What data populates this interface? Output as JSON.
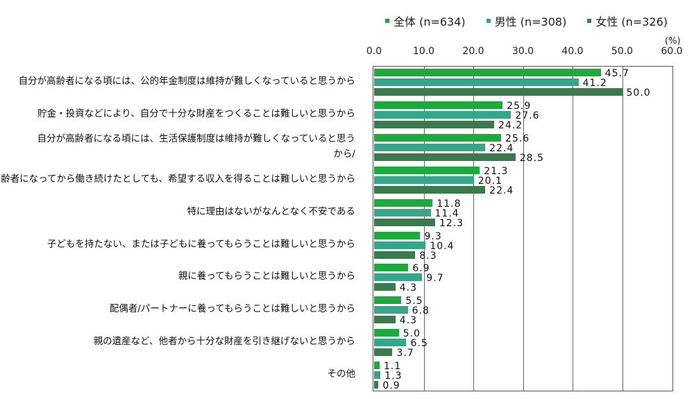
{
  "chart_data": {
    "type": "bar",
    "orientation": "horizontal",
    "unit_label": "(%)",
    "xlim": [
      0,
      60
    ],
    "x_ticks": [
      "0.0",
      "10.0",
      "20.0",
      "30.0",
      "40.0",
      "50.0",
      "60.0"
    ],
    "grid": true,
    "legend_position": "top",
    "categories": [
      "自分が高齢者になる頃には、公的年金制度は維持が難しくなっていると思うから",
      "貯金・投資などにより、自分で十分な財産をつくることは難しいと思うから",
      "自分が高齢者になる頃には、生活保護制度は維持が難しくなっていると思う\nから/",
      "高齢者になってから働き続けたとしても、希望する収入を得ることは難しいと思うから",
      "特に理由はないがなんとなく不安である",
      "子どもを持たない、または子どもに養ってもらうことは難しいと思うから",
      "親に養ってもらうことは難しいと思うから",
      "配偶者/パートナーに養ってもらうことは難しいと思うから",
      "親の遺産など、他者から十分な財産を引き継げないと思うから",
      "その他"
    ],
    "series": [
      {
        "name": "全体 (n=634)",
        "color": "#1daa3c",
        "values": [
          45.7,
          25.9,
          25.6,
          21.3,
          11.8,
          9.3,
          6.9,
          5.5,
          5.0,
          1.1
        ],
        "labels": [
          "45.7",
          "25.9",
          "25.6",
          "21.3",
          "11.8",
          "9.3",
          "6.9",
          "5.5",
          "5.0",
          "1.1"
        ]
      },
      {
        "name": "男性 (n=308)",
        "color": "#36a68a",
        "values": [
          41.2,
          27.6,
          22.4,
          20.1,
          11.4,
          10.4,
          9.7,
          6.8,
          6.5,
          1.3
        ],
        "labels": [
          "41.2",
          "27.6",
          "22.4",
          "20.1",
          "11.4",
          "10.4",
          "9.7",
          "6.8",
          "6.5",
          "1.3"
        ]
      },
      {
        "name": "女性 (n=326)",
        "color": "#3b7a4c",
        "values": [
          50.0,
          24.2,
          28.5,
          22.4,
          12.3,
          8.3,
          4.3,
          4.3,
          3.7,
          0.9
        ],
        "labels": [
          "50.0",
          "24.2",
          "28.5",
          "22.4",
          "12.3",
          "8.3",
          "4.3",
          "4.3",
          "3.7",
          "0.9"
        ]
      }
    ]
  }
}
